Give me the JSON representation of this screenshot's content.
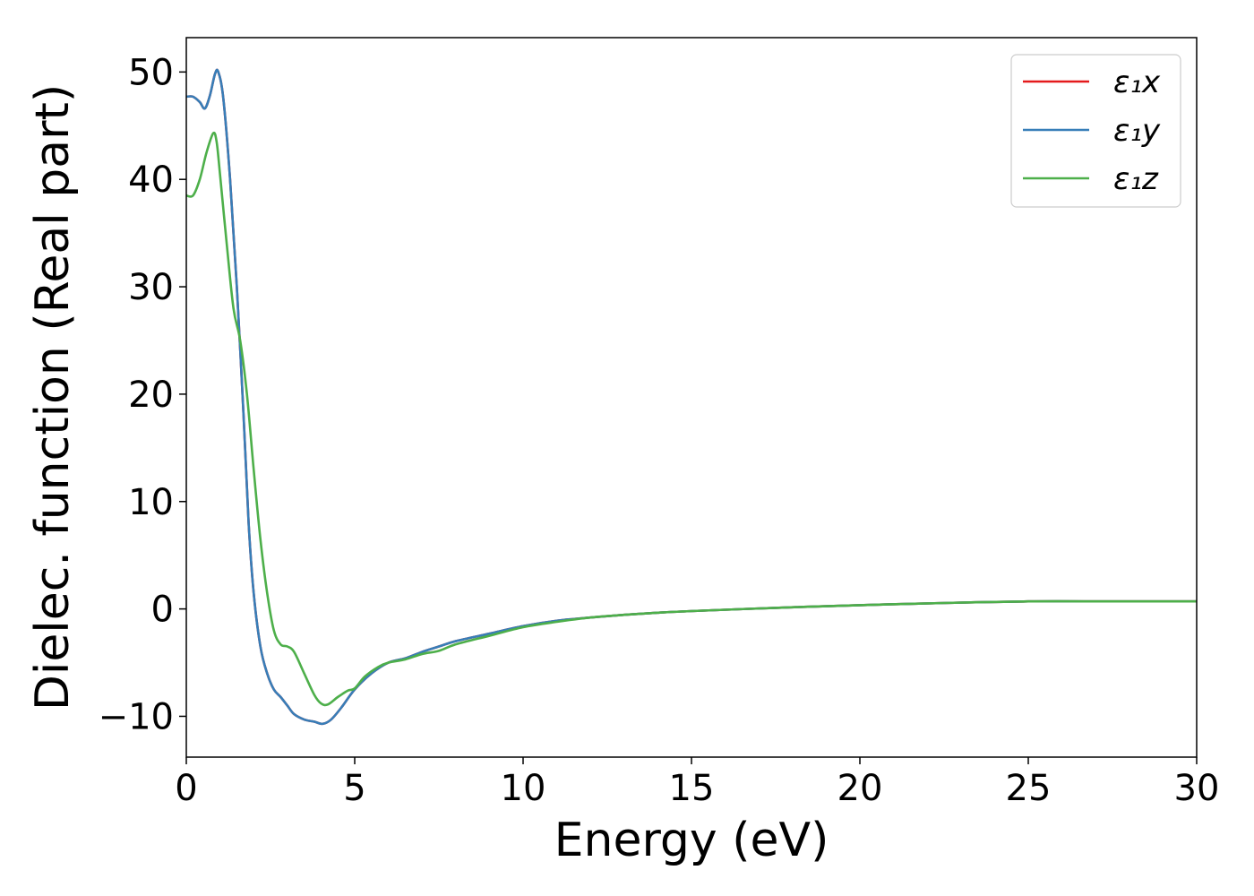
{
  "chart_data": {
    "type": "line",
    "title": "",
    "xlabel": "Energy (eV)",
    "ylabel": "Dielec. function (Real part)",
    "xlim": [
      0,
      30
    ],
    "ylim": [
      -13.8,
      53.2
    ],
    "xticks": [
      0,
      5,
      10,
      15,
      20,
      25,
      30
    ],
    "xtick_labels": [
      "0",
      "5",
      "10",
      "15",
      "20",
      "25",
      "30"
    ],
    "yticks": [
      -10,
      0,
      10,
      20,
      30,
      40,
      50
    ],
    "ytick_labels": [
      "−10",
      "0",
      "10",
      "20",
      "30",
      "40",
      "50"
    ],
    "grid": false,
    "legend_position": "top-right",
    "series": [
      {
        "name": "ε₁x",
        "color": "#e41a1c",
        "x": [
          0,
          0.2,
          0.4,
          0.55,
          0.7,
          0.85,
          0.95,
          1.1,
          1.3,
          1.5,
          1.7,
          1.85,
          2.0,
          2.2,
          2.4,
          2.6,
          2.8,
          3.0,
          3.2,
          3.5,
          3.8,
          4.05,
          4.3,
          4.6,
          5.0,
          5.5,
          6.0,
          6.5,
          7.0,
          7.5,
          8.0,
          9.0,
          10.0,
          11.0,
          12.0,
          13.0,
          14.0,
          15.0,
          17.5,
          20.0,
          22.5,
          25.0,
          27.5,
          30.0
        ],
        "values": [
          47.7,
          47.7,
          47.2,
          46.6,
          47.8,
          49.8,
          50.0,
          47.5,
          40.0,
          30.0,
          18.0,
          8.0,
          1.5,
          -3.5,
          -6.0,
          -7.5,
          -8.2,
          -9.0,
          -9.8,
          -10.3,
          -10.5,
          -10.7,
          -10.3,
          -9.2,
          -7.5,
          -6.0,
          -5.0,
          -4.6,
          -4.0,
          -3.5,
          -3.0,
          -2.3,
          -1.6,
          -1.1,
          -0.8,
          -0.55,
          -0.35,
          -0.2,
          0.1,
          0.35,
          0.55,
          0.7,
          0.7,
          0.7
        ]
      },
      {
        "name": "ε₁y",
        "color": "#377eb8",
        "x": [
          0,
          0.2,
          0.4,
          0.55,
          0.7,
          0.85,
          0.95,
          1.1,
          1.3,
          1.5,
          1.7,
          1.85,
          2.0,
          2.2,
          2.4,
          2.6,
          2.8,
          3.0,
          3.2,
          3.5,
          3.8,
          4.05,
          4.3,
          4.6,
          5.0,
          5.5,
          6.0,
          6.5,
          7.0,
          7.5,
          8.0,
          9.0,
          10.0,
          11.0,
          12.0,
          13.0,
          14.0,
          15.0,
          17.5,
          20.0,
          22.5,
          25.0,
          27.5,
          30.0
        ],
        "values": [
          47.7,
          47.7,
          47.2,
          46.6,
          47.8,
          49.8,
          50.0,
          47.5,
          40.0,
          30.0,
          18.0,
          8.0,
          1.5,
          -3.5,
          -6.0,
          -7.5,
          -8.2,
          -9.0,
          -9.8,
          -10.3,
          -10.5,
          -10.7,
          -10.3,
          -9.2,
          -7.5,
          -6.0,
          -5.0,
          -4.6,
          -4.0,
          -3.5,
          -3.0,
          -2.3,
          -1.6,
          -1.1,
          -0.8,
          -0.55,
          -0.35,
          -0.2,
          0.1,
          0.35,
          0.55,
          0.7,
          0.7,
          0.7
        ]
      },
      {
        "name": "ε₁z",
        "color": "#4daf4a",
        "x": [
          0,
          0.2,
          0.4,
          0.6,
          0.8,
          0.9,
          1.0,
          1.2,
          1.4,
          1.6,
          1.8,
          2.0,
          2.2,
          2.4,
          2.6,
          2.8,
          3.0,
          3.2,
          3.5,
          3.8,
          4.0,
          4.2,
          4.5,
          4.8,
          5.0,
          5.3,
          5.7,
          6.0,
          6.5,
          7.0,
          7.5,
          8.0,
          9.0,
          10.0,
          11.0,
          12.0,
          13.0,
          14.0,
          15.0,
          17.5,
          20.0,
          22.5,
          25.0,
          27.5,
          30.0
        ],
        "values": [
          38.5,
          38.5,
          40.0,
          42.5,
          44.3,
          43.5,
          40.5,
          34.0,
          28.0,
          25.0,
          20.0,
          13.0,
          6.5,
          1.5,
          -2.0,
          -3.3,
          -3.5,
          -4.0,
          -6.0,
          -8.0,
          -8.8,
          -8.9,
          -8.2,
          -7.6,
          -7.4,
          -6.3,
          -5.4,
          -5.0,
          -4.7,
          -4.2,
          -3.9,
          -3.3,
          -2.5,
          -1.7,
          -1.2,
          -0.8,
          -0.55,
          -0.35,
          -0.2,
          0.1,
          0.35,
          0.55,
          0.7,
          0.7,
          0.7
        ]
      }
    ]
  }
}
